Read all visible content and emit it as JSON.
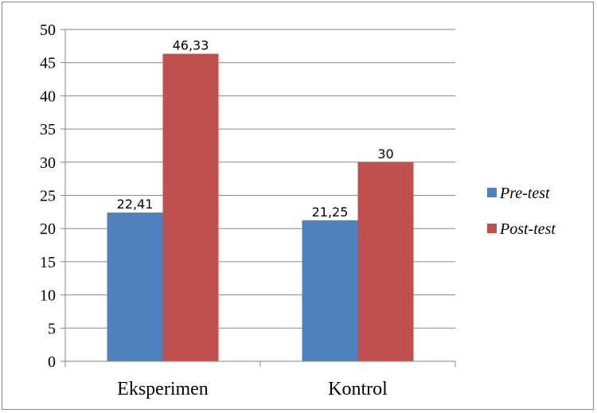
{
  "chart_data": {
    "type": "bar",
    "categories": [
      "Eksperimen",
      "Kontrol"
    ],
    "series": [
      {
        "name": "Pre-test",
        "values": [
          22.41,
          21.25
        ],
        "labels": [
          "22,41",
          "21,25"
        ],
        "color": "#4f81bd"
      },
      {
        "name": "Post-test",
        "values": [
          46.33,
          30
        ],
        "labels": [
          "46,33",
          "30"
        ],
        "color": "#c0504d"
      }
    ],
    "title": "",
    "xlabel": "",
    "ylabel": "",
    "ylim": [
      0,
      50
    ],
    "yticks": [
      "0",
      "5",
      "10",
      "15",
      "20",
      "25",
      "30",
      "35",
      "40",
      "45",
      "50"
    ],
    "grid": true,
    "legend_position": "right"
  }
}
